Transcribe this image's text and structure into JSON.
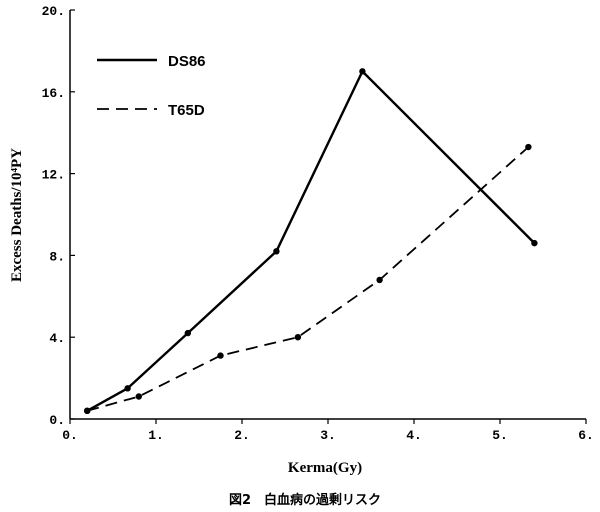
{
  "chart_data": {
    "type": "line",
    "xlabel": "Kerma(Gy)",
    "ylabel": "Excess Deaths/10⁴PY",
    "caption": "図2　白血病の過剰リスク",
    "xlim": [
      0,
      6
    ],
    "ylim": [
      0,
      20
    ],
    "x_tick_labels": [
      "0.",
      "1.",
      "2.",
      "3.",
      "4.",
      "5.",
      "6."
    ],
    "y_tick_labels": [
      "0.",
      "4.",
      "8.",
      "12.",
      "16.",
      "20."
    ],
    "legend_position": "top-left",
    "grid": false,
    "series": [
      {
        "name": "DS86",
        "line_style": "solid",
        "x": [
          0.2,
          0.67,
          1.37,
          2.4,
          3.4,
          5.4
        ],
        "y": [
          0.4,
          1.5,
          4.2,
          8.2,
          17.0,
          8.6
        ]
      },
      {
        "name": "T65D",
        "line_style": "dashed",
        "x": [
          0.2,
          0.8,
          1.75,
          2.65,
          3.6,
          5.33
        ],
        "y": [
          0.4,
          1.1,
          3.1,
          4.0,
          6.8,
          13.3
        ]
      }
    ]
  }
}
